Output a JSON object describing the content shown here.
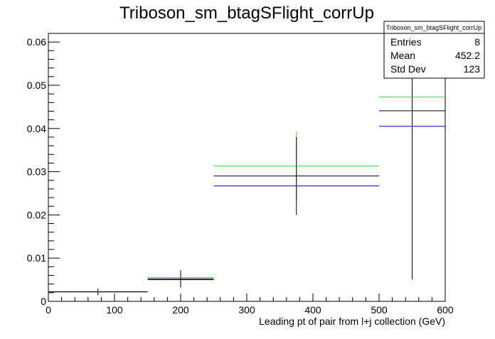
{
  "chart_data": {
    "type": "histogram",
    "title": "Triboson_sm_btagSFlight_corrUp",
    "xlabel": "Leading pt of pair from l+j collection (GeV)",
    "ylabel": "",
    "xlim": [
      0,
      600
    ],
    "ylim": [
      0,
      0.062
    ],
    "x_ticks": [
      0,
      100,
      200,
      300,
      400,
      500,
      600
    ],
    "y_ticks": [
      0,
      0.01,
      0.02,
      0.03,
      0.04,
      0.05,
      0.06
    ],
    "x_tick_labels": [
      "0",
      "100",
      "200",
      "300",
      "400",
      "500",
      "600"
    ],
    "y_tick_labels": [
      "0",
      "0.01",
      "0.02",
      "0.03",
      "0.04",
      "0.05",
      "0.06"
    ],
    "grid": false,
    "bins": [
      {
        "low": 0,
        "high": 150,
        "center": 75
      },
      {
        "low": 150,
        "high": 250,
        "center": 200
      },
      {
        "low": 250,
        "high": 500,
        "center": 375
      },
      {
        "low": 500,
        "high": 600,
        "center": 550
      }
    ],
    "series": [
      {
        "color": "#000000",
        "values": [
          0.0022,
          0.0052,
          0.029,
          0.0441
        ],
        "errors": [
          0.0008,
          0.002,
          0.009,
          0.039
        ]
      },
      {
        "color": "#33dd33",
        "values": [
          0.0022,
          0.0055,
          0.0313,
          0.0473
        ],
        "errors": [
          0,
          0,
          0.008,
          0
        ]
      },
      {
        "color": "#0000cc",
        "values": [
          0.0022,
          0.005,
          0.0267,
          0.0405
        ],
        "errors": [
          0,
          0,
          0,
          0
        ]
      }
    ],
    "stats_box": {
      "title": "Triboson_sm_btagSFlight_corrUp",
      "rows": [
        {
          "label": "Entries",
          "value": "8"
        },
        {
          "label": "Mean",
          "value": "452.2"
        },
        {
          "label": "Std Dev",
          "value": "123"
        }
      ]
    }
  }
}
